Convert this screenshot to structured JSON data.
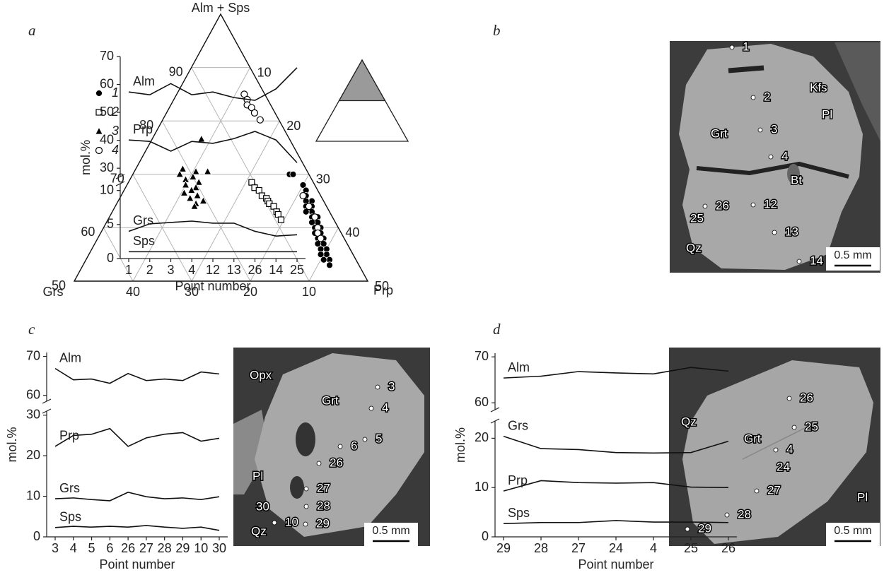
{
  "chart_data": [
    {
      "type": "ternary",
      "panel": "a",
      "axis_labels": {
        "top": "Alm + Sps",
        "left": "Grs",
        "right": "Prp"
      },
      "left_ticks": [
        50,
        60,
        70,
        80,
        90
      ],
      "right_ticks": [
        10,
        20,
        30,
        40,
        50
      ],
      "bottom_ticks": [
        40,
        30,
        20,
        10
      ],
      "grid": true,
      "series": [
        {
          "name": "1",
          "marker": "circle",
          "fill": "#000000",
          "alm_sps": [
            70,
            70,
            68,
            67,
            66,
            65,
            65,
            64,
            64,
            63,
            63,
            62,
            62,
            61,
            61,
            60,
            60,
            59,
            59,
            58,
            58,
            57,
            57,
            56,
            56,
            55,
            55,
            54,
            54,
            53
          ],
          "grs": [
            3.3,
            2.7,
            2,
            2,
            2.5,
            2,
            3,
            2.5,
            3.5,
            3,
            4,
            2.5,
            3.5,
            3,
            4,
            3,
            4,
            3.5,
            4.5,
            3.5,
            4.5,
            4,
            5,
            4,
            5,
            4.5,
            5.5,
            4.5,
            5.5,
            5
          ],
          "prp": [
            26.7,
            27.3,
            30,
            31,
            31.5,
            33,
            32,
            33.5,
            32.5,
            34,
            33,
            35.5,
            34.5,
            36,
            35,
            37,
            36,
            37.5,
            36.5,
            38.5,
            37.5,
            39,
            38,
            40,
            39,
            40.5,
            39.5,
            41.5,
            40.5,
            42
          ]
        },
        {
          "name": "2",
          "marker": "square",
          "fill": "#ffffff",
          "alm_sps": [
            68.5,
            67.5,
            67,
            66,
            65.5,
            65,
            64.5,
            64,
            63,
            62.5,
            61.5
          ],
          "grs": [
            10.5,
            10.5,
            10,
            10,
            9.5,
            9.5,
            9.5,
            9,
            9,
            9,
            9
          ],
          "prp": [
            21,
            22,
            23,
            24,
            25,
            25.5,
            26,
            27,
            28,
            28.5,
            29.5
          ]
        },
        {
          "name": "3",
          "marker": "triangle",
          "fill": "#000000",
          "alm_sps": [
            76.6,
            71,
            70.5,
            70.5,
            70,
            69.5,
            69,
            68.5,
            68,
            67.5,
            67,
            66.5,
            66,
            65.5,
            65,
            64.5,
            64
          ],
          "grs": [
            15,
            21,
            19,
            17,
            22,
            20,
            21.5,
            19.5,
            22,
            20.5,
            21.5,
            23,
            21,
            22.5,
            20.5,
            22,
            22.5
          ],
          "prp": [
            8.4,
            8,
            10.5,
            12.5,
            8,
            10.5,
            9.5,
            12,
            10,
            12,
            11.5,
            10.5,
            13,
            12,
            14.5,
            13.5,
            13.5
          ]
        },
        {
          "name": "4",
          "marker": "circle",
          "fill": "#ffffff",
          "alm_sps": [
            85,
            84,
            83,
            82.5,
            81.5,
            80.2,
            66,
            64,
            62,
            60,
            59,
            58
          ],
          "grs": [
            3.5,
            3.5,
            4,
            3.5,
            3.5,
            3.2,
            3,
            3,
            3,
            3.5,
            4,
            4
          ],
          "prp": [
            11.5,
            12.5,
            13,
            14,
            15,
            16.6,
            31,
            33,
            35,
            36.5,
            37,
            38
          ]
        }
      ]
    },
    {
      "type": "line",
      "panel": "b",
      "ylabel": "mol.%",
      "xlabel": "Point number",
      "color": "#111111",
      "categories": [
        "1",
        "2",
        "3",
        "4",
        "12",
        "13",
        "26",
        "14",
        "25"
      ],
      "ylim_upper": [
        27,
        70
      ],
      "yticks_upper": [
        30,
        40,
        50,
        60,
        70
      ],
      "ylim": [
        0,
        11
      ],
      "yticks": [
        0,
        5,
        10
      ],
      "series": [
        {
          "name": "Alm",
          "axis": "upper",
          "values": [
            57.3,
            56.3,
            60.3,
            56.3,
            57.3,
            55.3,
            54.3,
            58.4,
            66
          ]
        },
        {
          "name": "Prp",
          "axis": "upper",
          "values": [
            40.1,
            39.6,
            36.1,
            39.6,
            38.9,
            40.6,
            43.2,
            40.1,
            32
          ]
        },
        {
          "name": "Grs",
          "axis": "lower",
          "values": [
            4.0,
            5.1,
            5.3,
            5.5,
            5.2,
            5.2,
            4.0,
            3.3,
            3.5
          ]
        },
        {
          "name": "Sps",
          "axis": "lower",
          "values": [
            1.0,
            1.0,
            1.0,
            1.0,
            1.0,
            1.0,
            1.0,
            1.0,
            1.0
          ]
        }
      ]
    },
    {
      "type": "line",
      "panel": "c",
      "ylabel": "mol.%",
      "xlabel": "Point number",
      "color": "#111111",
      "categories": [
        "3",
        "4",
        "5",
        "6",
        "26",
        "27",
        "28",
        "29",
        "10",
        "30"
      ],
      "ylim_upper": [
        58.5,
        71
      ],
      "yticks_upper": [
        60,
        70
      ],
      "ylim": [
        0,
        31
      ],
      "yticks": [
        0,
        10,
        20,
        30
      ],
      "series": [
        {
          "name": "Alm",
          "axis": "upper",
          "values": [
            66.9,
            64.0,
            64.2,
            63.1,
            65.6,
            63.8,
            64.2,
            63.8,
            66.0,
            65.5
          ]
        },
        {
          "name": "Prp",
          "axis": "lower",
          "values": [
            22.3,
            25.0,
            25.3,
            26.7,
            22.3,
            24.4,
            25.3,
            25.7,
            23.6,
            24.3
          ]
        },
        {
          "name": "Grs",
          "axis": "lower",
          "values": [
            9.4,
            9.6,
            9.2,
            8.9,
            11.0,
            9.9,
            9.4,
            9.6,
            9.2,
            9.9
          ]
        },
        {
          "name": "Sps",
          "axis": "lower",
          "values": [
            2.3,
            2.6,
            2.4,
            2.6,
            2.4,
            2.8,
            2.4,
            2.1,
            2.4,
            1.6
          ]
        }
      ]
    },
    {
      "type": "line",
      "panel": "d",
      "ylabel": "mol.%",
      "xlabel": "Point number",
      "color": "#111111",
      "categories": [
        "29",
        "28",
        "27",
        "24",
        "4",
        "25",
        "26"
      ],
      "ylim_upper": [
        58.5,
        70.8
      ],
      "yticks_upper": [
        60,
        70
      ],
      "ylim": [
        0,
        23.5
      ],
      "yticks": [
        0,
        10,
        20
      ],
      "series": [
        {
          "name": "Alm",
          "axis": "upper",
          "values": [
            65.4,
            65.8,
            66.8,
            66.5,
            66.3,
            67.7,
            66.9
          ]
        },
        {
          "name": "Grs",
          "axis": "lower",
          "values": [
            20.4,
            17.9,
            17.7,
            17.1,
            17.0,
            17.1,
            19.4
          ]
        },
        {
          "name": "Prp",
          "axis": "lower",
          "values": [
            9.3,
            11.4,
            11.0,
            10.9,
            11.0,
            10.1,
            10.0
          ]
        },
        {
          "name": "Sps",
          "axis": "lower",
          "values": [
            2.7,
            2.9,
            2.9,
            3.3,
            3.0,
            3.0,
            2.9
          ]
        }
      ]
    }
  ],
  "images": [
    {
      "labels": [
        "1",
        "2",
        "3",
        "4",
        "Kfs",
        "Pl",
        "Grt",
        "Bt",
        "12",
        "26",
        "25",
        "13",
        "Qz",
        "14"
      ],
      "scale": "0.5 mm"
    },
    {
      "labels": [
        "Opx",
        "Grt",
        "3",
        "4",
        "5",
        "6",
        "26",
        "27",
        "Pl",
        "30",
        "28",
        "10",
        "29",
        "Qz"
      ],
      "scale": "0.5 mm"
    },
    {
      "labels": [
        "26",
        "Qz",
        "25",
        "Grt",
        "4",
        "24",
        "27",
        "Pl",
        "28",
        "29"
      ],
      "scale": "0.5 mm"
    }
  ]
}
